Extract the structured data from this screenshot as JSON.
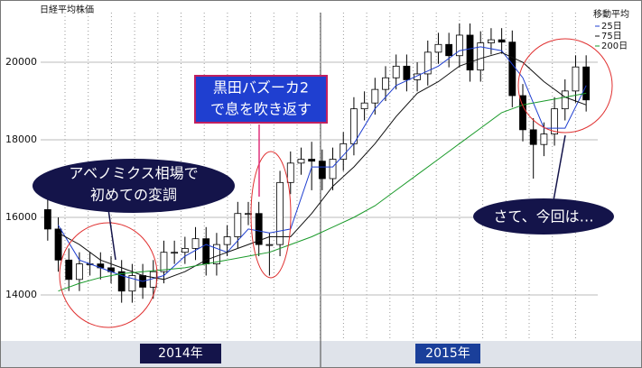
{
  "chart_data": {
    "type": "candlestick",
    "title": "日経平均株価",
    "ylim": [
      12814,
      21420
    ],
    "yticks": [
      14000,
      16000,
      18000,
      20000
    ],
    "grid": true,
    "periods": [
      "2014年",
      "2015年"
    ],
    "candles": {
      "open": [
        16200,
        15700,
        14900,
        14400,
        14800,
        14800,
        14700,
        14600,
        14100,
        14500,
        14200,
        14600,
        15100,
        15100,
        15200,
        15450,
        14800,
        15300,
        15500,
        16100,
        16100,
        15300,
        15300,
        16900,
        17400,
        17500,
        17450,
        17000,
        17500,
        17900,
        18800,
        18950,
        19300,
        19600,
        19900,
        19550,
        19700,
        20260,
        20460,
        20170,
        20700,
        19800,
        20500,
        20580,
        20520,
        19140,
        18260,
        17880,
        18150,
        18800,
        19260,
        19880
      ],
      "high": [
        16500,
        16000,
        15200,
        15100,
        15100,
        15100,
        15000,
        14900,
        14800,
        14800,
        14900,
        15400,
        15400,
        15500,
        15750,
        15750,
        15600,
        15800,
        16400,
        16400,
        16400,
        15600,
        17200,
        17700,
        17800,
        17950,
        17750,
        17800,
        18200,
        19100,
        19250,
        19600,
        19900,
        20200,
        20200,
        20000,
        20560,
        20760,
        20760,
        21000,
        21000,
        20800,
        20880,
        20880,
        20820,
        19440,
        18560,
        18450,
        19100,
        19560,
        20180,
        20180
      ],
      "low": [
        15400,
        14600,
        14100,
        14100,
        14500,
        14400,
        14300,
        13800,
        13800,
        13900,
        13900,
        14300,
        14800,
        14800,
        14900,
        14500,
        14500,
        15000,
        15200,
        15800,
        15000,
        14500,
        15000,
        16600,
        17100,
        16700,
        16700,
        16700,
        17200,
        17600,
        18500,
        18650,
        19000,
        19300,
        19250,
        19250,
        19400,
        19960,
        19870,
        19870,
        19500,
        19500,
        20200,
        20220,
        18840,
        17960,
        17000,
        17580,
        17850,
        18500,
        18960,
        18730
      ],
      "close": [
        15700,
        14900,
        14400,
        14800,
        14800,
        14700,
        14600,
        14100,
        14500,
        14200,
        14600,
        15100,
        15100,
        15200,
        15450,
        14800,
        15300,
        15500,
        16100,
        16100,
        15300,
        15300,
        16900,
        17400,
        17500,
        17450,
        17000,
        17500,
        17900,
        18800,
        18950,
        19300,
        19600,
        19900,
        19550,
        19700,
        20260,
        20460,
        20170,
        20700,
        19800,
        20500,
        20580,
        20520,
        19140,
        18260,
        17880,
        18150,
        18800,
        19260,
        19880,
        19030
      ]
    },
    "legend_title": "移動平均",
    "series": [
      {
        "name": "25日",
        "color": "#1f3fd0",
        "values": [
          15800,
          14900,
          14700,
          14500,
          14350,
          14500,
          15000,
          15300,
          15100,
          15700,
          15600,
          15700,
          17300,
          17300,
          17900,
          18800,
          19400,
          19650,
          19900,
          20300,
          20400,
          20300,
          19600,
          18300,
          18300,
          19400
        ]
      },
      {
        "name": "75日",
        "color": "#111111",
        "values": [
          15600,
          15300,
          14900,
          14700,
          14500,
          14400,
          14600,
          14900,
          15100,
          15300,
          15500,
          15500,
          16100,
          16800,
          17300,
          17900,
          18600,
          19200,
          19500,
          19900,
          20100,
          20250,
          20000,
          19500,
          19100,
          18900
        ]
      },
      {
        "name": "200日",
        "color": "#1a9a2a",
        "values": [
          14100,
          14300,
          14450,
          14550,
          14600,
          14650,
          14700,
          14800,
          14900,
          15000,
          15100,
          15300,
          15500,
          15750,
          16000,
          16300,
          16700,
          17100,
          17500,
          17900,
          18300,
          18700,
          18900,
          19000,
          19100,
          19200
        ]
      }
    ],
    "annotations": [
      {
        "text": [
          "アベノミクス相場で",
          "初めての変調"
        ]
      },
      {
        "text": [
          "黒田バズーカ2",
          "で息を吹き返す"
        ]
      },
      {
        "text": [
          "さて、今回は…"
        ]
      }
    ]
  }
}
